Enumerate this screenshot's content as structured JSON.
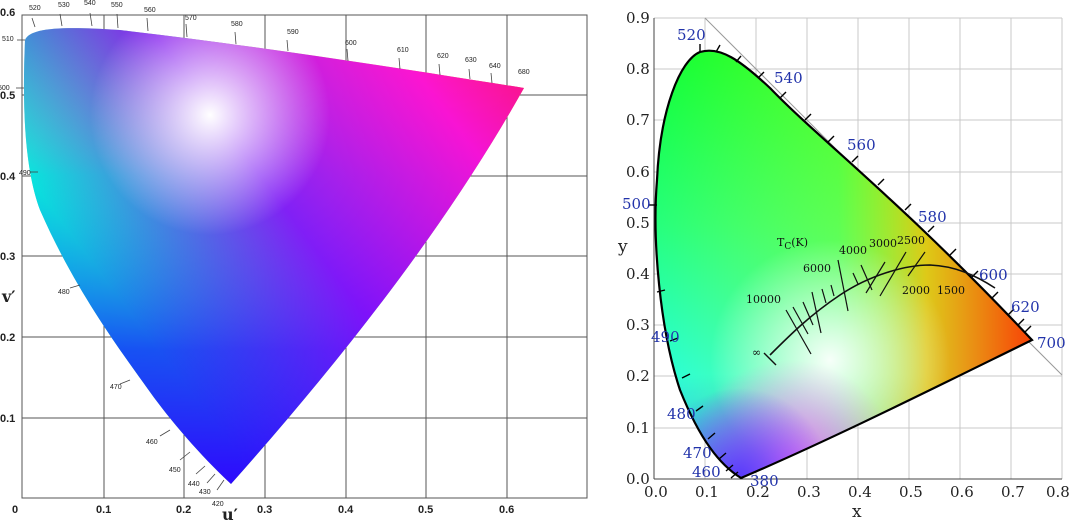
{
  "left_panel": {
    "x_axis_label": "u′",
    "y_axis_label": "v′",
    "x_ticks": [
      "0",
      "0.1",
      "0.2",
      "0.3",
      "0.4",
      "0.5",
      "0.6"
    ],
    "y_ticks": [
      "0.1",
      "0.2",
      "0.3",
      "0.4",
      "0.5",
      "0.6"
    ],
    "wavelength_labels": [
      "420",
      "430",
      "440",
      "450",
      "460",
      "470",
      "480",
      "490",
      "500",
      "510",
      "520",
      "530",
      "540",
      "550",
      "560",
      "570",
      "580",
      "590",
      "600",
      "610",
      "620",
      "630",
      "640",
      "680"
    ]
  },
  "right_panel": {
    "x_axis_label": "x",
    "y_axis_label": "y",
    "x_ticks": [
      "0.0",
      "0.1",
      "0.2",
      "0.3",
      "0.4",
      "0.5",
      "0.6",
      "0.7",
      "0.8"
    ],
    "y_ticks": [
      "0.0",
      "0.1",
      "0.2",
      "0.3",
      "0.4",
      "0.5",
      "0.6",
      "0.7",
      "0.8",
      "0.9"
    ],
    "wavelength_labels": [
      "380",
      "460",
      "470",
      "480",
      "490",
      "500",
      "520",
      "540",
      "560",
      "580",
      "600",
      "620",
      "700"
    ],
    "planckian_title": "T",
    "planckian_title_sub": "C",
    "planckian_title_unit": "(K)",
    "temperature_labels": [
      "10000",
      "6000",
      "4000",
      "3000",
      "2500",
      "2000",
      "1500",
      "∞"
    ]
  },
  "colors": {
    "grid": "#555555",
    "wavelength_right": "#2233aa",
    "locus_outline": "#000000"
  }
}
